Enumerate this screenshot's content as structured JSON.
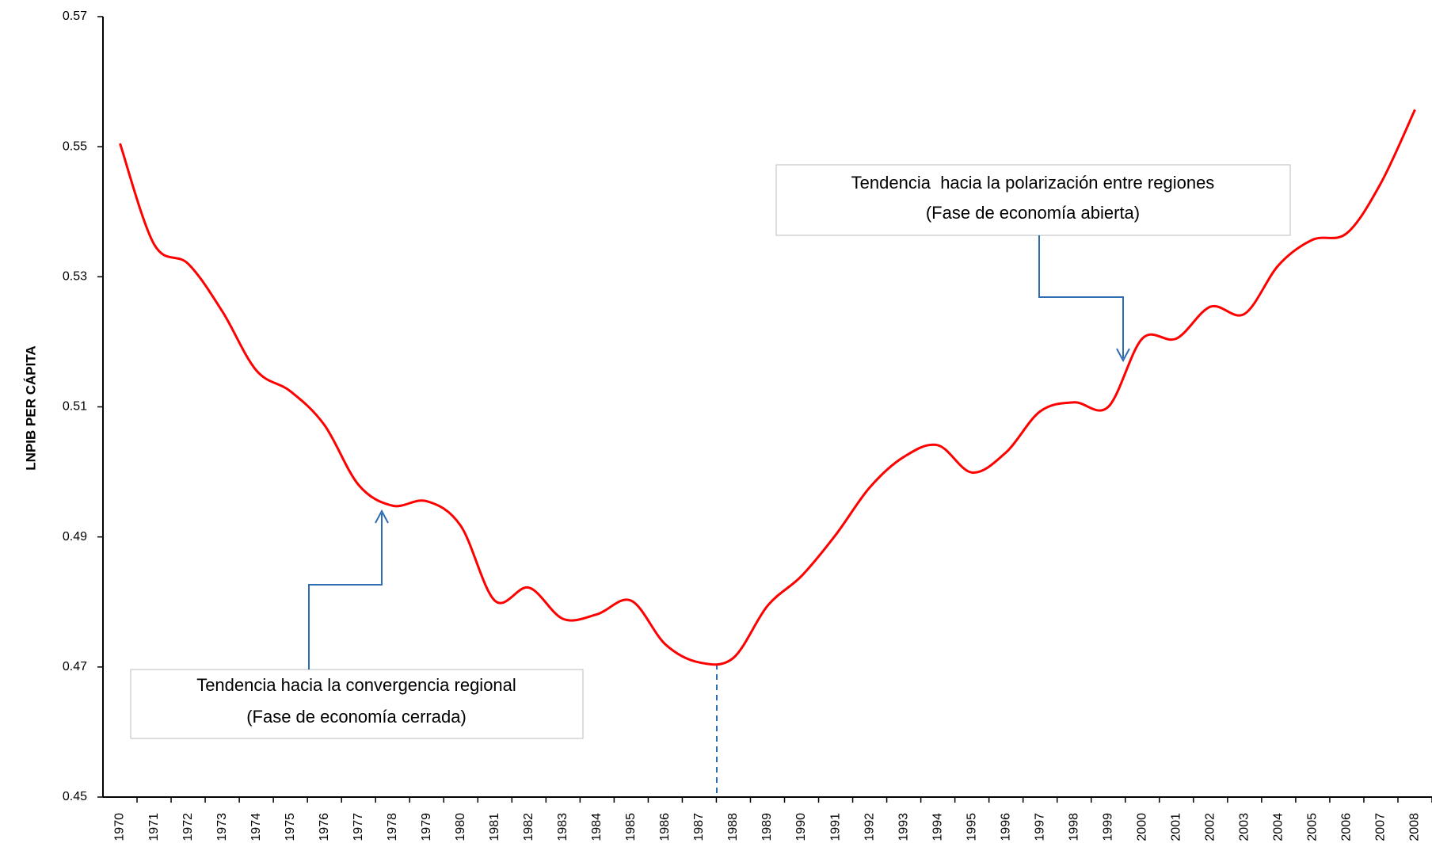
{
  "chart_data": {
    "type": "line",
    "y_label": "LNPIB PER CÁPITA",
    "categories": [
      "1970",
      "1971",
      "1972",
      "1973",
      "1974",
      "1975",
      "1976",
      "1977",
      "1978",
      "1979",
      "1980",
      "1981",
      "1982",
      "1983",
      "1984",
      "1985",
      "1986",
      "1987",
      "1988",
      "1989",
      "1990",
      "1991",
      "1992",
      "1993",
      "1994",
      "1995",
      "1996",
      "1997",
      "1998",
      "1999",
      "2000",
      "2001",
      "2002",
      "2003",
      "2004",
      "2005",
      "2006",
      "2007",
      "2008"
    ],
    "series": [
      {
        "name": "LNPIB PER CÁPITA",
        "color": "#ff0000",
        "values": [
          0.5505,
          0.535,
          0.532,
          0.5247,
          0.5156,
          0.5124,
          0.5072,
          0.498,
          0.4948,
          0.4955,
          0.4917,
          0.4802,
          0.4822,
          0.4774,
          0.4781,
          0.4802,
          0.4735,
          0.4707,
          0.4714,
          0.4794,
          0.484,
          0.4903,
          0.4976,
          0.5023,
          0.5041,
          0.4999,
          0.503,
          0.5093,
          0.5107,
          0.51,
          0.5205,
          0.5205,
          0.5254,
          0.5243,
          0.5318,
          0.5357,
          0.5367,
          0.5444,
          0.5557
        ]
      }
    ],
    "ylim": [
      0.45,
      0.57
    ],
    "yticks": [
      0.45,
      0.47,
      0.49,
      0.51,
      0.53,
      0.55,
      0.57
    ],
    "annotations": [
      {
        "lines": [
          "Tendencia hacia la convergencia regional",
          "(Fase de economía cerrada)"
        ]
      },
      {
        "lines": [
          "Tendencia  hacia la polarización entre regiones",
          "(Fase de economía abierta)"
        ]
      }
    ]
  }
}
